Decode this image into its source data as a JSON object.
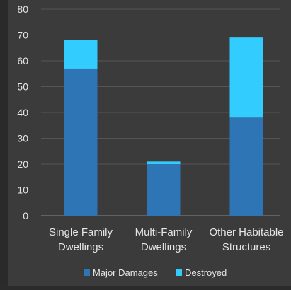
{
  "chart_data": {
    "type": "bar",
    "stacked": true,
    "categories": [
      [
        "Single Family",
        "Dwellings"
      ],
      [
        "Multi-Family",
        "Dwellings"
      ],
      [
        "Other Habitable",
        "Structures"
      ]
    ],
    "series": [
      {
        "name": "Major Damages",
        "color": "#2e75b6",
        "values": [
          57,
          20,
          38
        ]
      },
      {
        "name": "Destroyed",
        "color": "#33ccff",
        "values": [
          11,
          1,
          31
        ]
      }
    ],
    "ylim": [
      0,
      80
    ],
    "yticks": [
      0,
      10,
      20,
      30,
      40,
      50,
      60,
      70,
      80
    ],
    "grid": true,
    "legend": "bottom"
  }
}
